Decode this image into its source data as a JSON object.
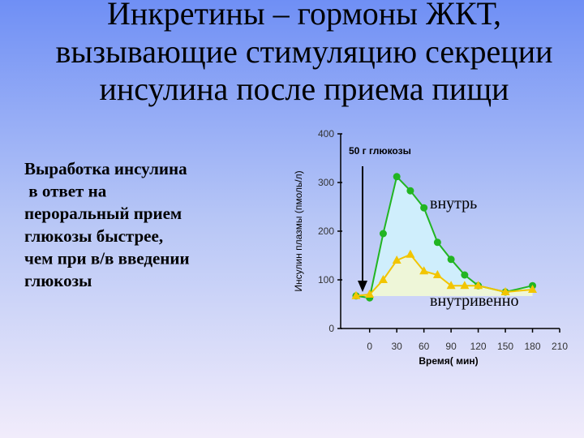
{
  "slide": {
    "title": [
      "Инкретины – гормоны ЖКТ,",
      "вызывающие стимуляцию секреции",
      "инсулина после приема пищи"
    ],
    "text": [
      "Выработка инсулина",
      " в ответ на",
      "пероральный прием",
      "глюкозы быстрее,",
      "чем при в/в введении",
      "глюкозы"
    ]
  },
  "chart_data": {
    "type": "line",
    "ylabel": "Инсулин плазмы (пмоль/л)",
    "xlabel": "Время( мин)",
    "annotation": "50 г глюкозы",
    "x": [
      -15,
      0,
      15,
      30,
      45,
      60,
      75,
      90,
      105,
      120,
      150,
      180
    ],
    "series": [
      {
        "name": "внутрь",
        "color": "#22b522",
        "marker": "circle",
        "fill": "#cfeefc",
        "values": [
          67,
          63,
          195,
          312,
          283,
          248,
          177,
          142,
          110,
          88,
          75,
          88
        ]
      },
      {
        "name": "внутривенно",
        "color": "#f2c500",
        "marker": "triangle",
        "fill": "#eef6d8",
        "values": [
          67,
          70,
          100,
          140,
          152,
          118,
          110,
          88,
          88,
          88,
          75,
          80
        ]
      }
    ],
    "xlim": [
      -32,
      210
    ],
    "xticks": [
      0,
      30,
      60,
      90,
      120,
      150,
      180,
      210
    ],
    "ylim": [
      0,
      400
    ],
    "yticks": [
      0,
      100,
      200,
      300,
      400
    ]
  }
}
